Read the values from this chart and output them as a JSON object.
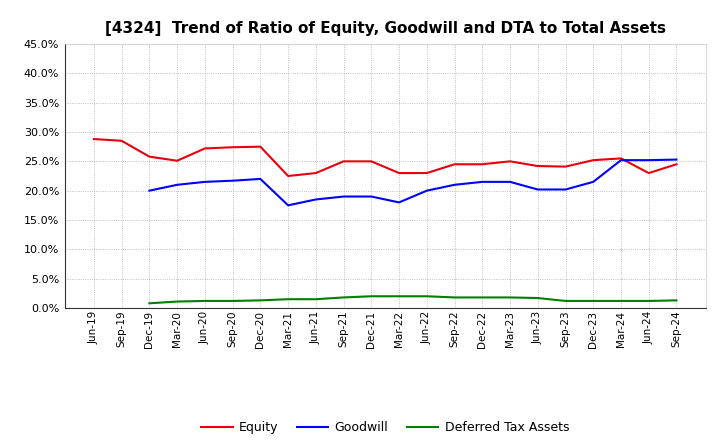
{
  "title": "[4324]  Trend of Ratio of Equity, Goodwill and DTA to Total Assets",
  "x_labels": [
    "Jun-19",
    "Sep-19",
    "Dec-19",
    "Mar-20",
    "Jun-20",
    "Sep-20",
    "Dec-20",
    "Mar-21",
    "Jun-21",
    "Sep-21",
    "Dec-21",
    "Mar-22",
    "Jun-22",
    "Sep-22",
    "Dec-22",
    "Mar-23",
    "Jun-23",
    "Sep-23",
    "Dec-23",
    "Mar-24",
    "Jun-24",
    "Sep-24"
  ],
  "equity": [
    28.8,
    28.5,
    25.8,
    25.1,
    27.2,
    27.4,
    27.5,
    22.5,
    23.0,
    25.0,
    25.0,
    23.0,
    23.0,
    24.5,
    24.5,
    25.0,
    24.2,
    24.1,
    25.2,
    25.5,
    23.0,
    24.5
  ],
  "goodwill": [
    null,
    null,
    20.0,
    21.0,
    21.5,
    21.7,
    22.0,
    17.5,
    18.5,
    19.0,
    19.0,
    18.0,
    20.0,
    21.0,
    21.5,
    21.5,
    20.2,
    20.2,
    21.5,
    25.2,
    25.2,
    25.3
  ],
  "dta": [
    null,
    null,
    0.8,
    1.1,
    1.2,
    1.2,
    1.3,
    1.5,
    1.5,
    1.8,
    2.0,
    2.0,
    2.0,
    1.8,
    1.8,
    1.8,
    1.7,
    1.2,
    1.2,
    1.2,
    1.2,
    1.3
  ],
  "equity_color": "#e8000d",
  "goodwill_color": "#0000ff",
  "dta_color": "#008000",
  "ylim": [
    0,
    45
  ],
  "yticks": [
    0,
    5,
    10,
    15,
    20,
    25,
    30,
    35,
    40,
    45
  ],
  "bg_color": "#ffffff",
  "plot_bg_color": "#ffffff",
  "grid_color": "#999999",
  "title_fontsize": 11,
  "legend_labels": [
    "Equity",
    "Goodwill",
    "Deferred Tax Assets"
  ]
}
